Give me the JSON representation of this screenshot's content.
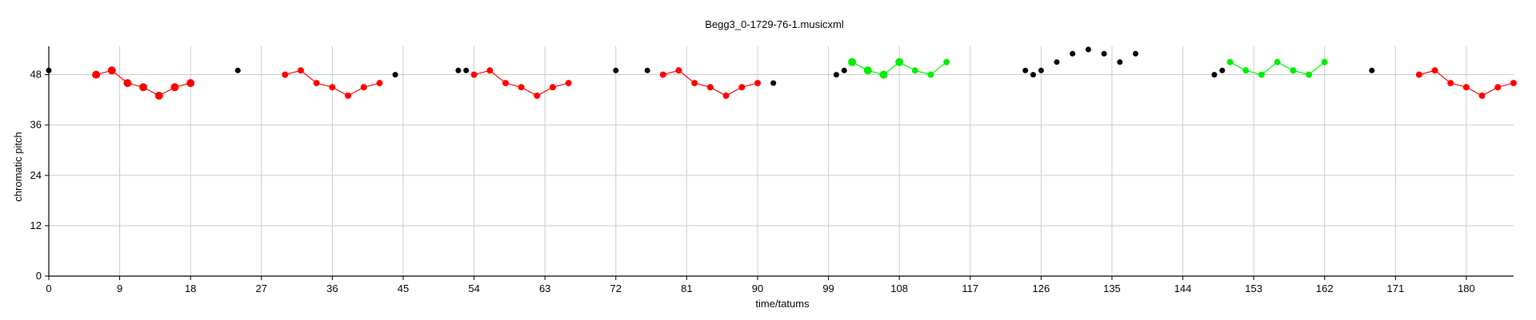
{
  "chart_data": {
    "type": "scatter",
    "title": "Begg3_0-1729-76-1.musicxml",
    "xlabel": "time/tatums",
    "ylabel": "chromatic pitch",
    "xlim": [
      0,
      186
    ],
    "ylim": [
      0,
      54
    ],
    "xticks": [
      0,
      9,
      18,
      27,
      36,
      45,
      54,
      63,
      72,
      81,
      90,
      99,
      108,
      117,
      126,
      135,
      144,
      153,
      162,
      171,
      180
    ],
    "yticks": [
      0,
      12,
      24,
      36,
      48
    ],
    "grid": true,
    "colors": {
      "red": "#ff0000",
      "green": "#00ee00",
      "black": "#000000",
      "grid": "#cccccc"
    },
    "series": [
      {
        "color": "red",
        "connected": true,
        "points": [
          [
            6,
            48
          ],
          [
            8,
            49
          ],
          [
            10,
            46
          ],
          [
            12,
            45
          ],
          [
            14,
            43
          ],
          [
            16,
            45
          ],
          [
            18,
            46
          ]
        ],
        "sizes": [
          5,
          5,
          5,
          5,
          5,
          5,
          5
        ]
      },
      {
        "color": "red",
        "connected": true,
        "points": [
          [
            30,
            48
          ],
          [
            32,
            49
          ],
          [
            34,
            46
          ],
          [
            36,
            45
          ],
          [
            38,
            43
          ],
          [
            40,
            45
          ],
          [
            42,
            46
          ]
        ],
        "sizes": [
          4,
          4,
          4,
          4,
          4,
          4,
          4
        ]
      },
      {
        "color": "red",
        "connected": true,
        "points": [
          [
            54,
            48
          ],
          [
            56,
            49
          ],
          [
            58,
            46
          ],
          [
            60,
            45
          ],
          [
            62,
            43
          ],
          [
            64,
            45
          ],
          [
            66,
            46
          ]
        ],
        "sizes": [
          4,
          4,
          4,
          4,
          4,
          4,
          4
        ]
      },
      {
        "color": "red",
        "connected": true,
        "points": [
          [
            78,
            48
          ],
          [
            80,
            49
          ],
          [
            82,
            46
          ],
          [
            84,
            45
          ],
          [
            86,
            43
          ],
          [
            88,
            45
          ],
          [
            90,
            46
          ]
        ],
        "sizes": [
          4,
          4,
          4,
          4,
          4,
          4,
          4
        ]
      },
      {
        "color": "green",
        "connected": true,
        "points": [
          [
            102,
            51
          ],
          [
            104,
            49
          ],
          [
            106,
            48
          ],
          [
            108,
            51
          ],
          [
            110,
            49
          ],
          [
            112,
            48
          ],
          [
            114,
            51
          ]
        ],
        "sizes": [
          5,
          5,
          5,
          5,
          4,
          4,
          4
        ]
      },
      {
        "color": "green",
        "connected": true,
        "points": [
          [
            150,
            51
          ],
          [
            152,
            49
          ],
          [
            154,
            48
          ],
          [
            156,
            51
          ],
          [
            158,
            49
          ],
          [
            160,
            48
          ],
          [
            162,
            51
          ]
        ],
        "sizes": [
          4,
          4,
          4,
          4,
          4,
          4,
          4
        ]
      },
      {
        "color": "red",
        "connected": true,
        "points": [
          [
            174,
            48
          ],
          [
            176,
            49
          ],
          [
            178,
            46
          ],
          [
            180,
            45
          ],
          [
            182,
            43
          ],
          [
            184,
            45
          ],
          [
            186,
            46
          ]
        ],
        "sizes": [
          4,
          4,
          4,
          4,
          4,
          4,
          4
        ]
      },
      {
        "color": "black",
        "connected": false,
        "points": [
          [
            0,
            49
          ],
          [
            24,
            49
          ],
          [
            44,
            48
          ],
          [
            52,
            49
          ],
          [
            53,
            49
          ],
          [
            72,
            49
          ],
          [
            76,
            49
          ],
          [
            92,
            46
          ],
          [
            100,
            48
          ],
          [
            101,
            49
          ],
          [
            124,
            49
          ],
          [
            125,
            48
          ],
          [
            126,
            49
          ],
          [
            128,
            51
          ],
          [
            130,
            53
          ],
          [
            132,
            54
          ],
          [
            134,
            53
          ],
          [
            136,
            51
          ],
          [
            138,
            53
          ],
          [
            148,
            48
          ],
          [
            149,
            49
          ],
          [
            168,
            49
          ]
        ],
        "sizes": [
          3.5,
          3.5,
          3.5,
          3.5,
          3.5,
          3.5,
          3.5,
          3.5,
          3.5,
          3.5,
          3.5,
          3.5,
          3.5,
          3.5,
          3.5,
          3.5,
          3.5,
          3.5,
          3.5,
          3.5,
          3.5,
          3.5
        ]
      }
    ]
  }
}
